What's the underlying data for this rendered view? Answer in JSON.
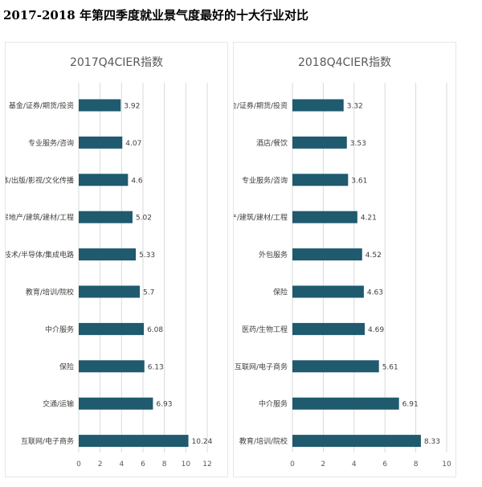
{
  "title": "2017-2018 年第四季度就业景气度最好的十大行业对比",
  "chart_data": [
    {
      "type": "bar",
      "orientation": "horizontal",
      "title": "2017Q4CIER指数",
      "categories": [
        "基金/证券/期货/投资",
        "专业服务/咨询",
        "媒体/出版/影视/文化传播",
        "房地产/建筑/建材/工程",
        "电子技术/半导体/集成电路",
        "教育/培训/院校",
        "中介服务",
        "保险",
        "交通/运输",
        "互联网/电子商务"
      ],
      "values": [
        3.92,
        4.07,
        4.6,
        5.02,
        5.33,
        5.7,
        6.08,
        6.13,
        6.93,
        10.24
      ],
      "value_labels": [
        "3.92",
        "4.07",
        "4.6",
        "5.02",
        "5.33",
        "5.7",
        "6.08",
        "6.13",
        "6.93",
        "10.24"
      ],
      "xlim": [
        0,
        12
      ],
      "ticks": [
        0,
        2,
        4,
        6,
        8,
        10,
        12
      ],
      "grid": true,
      "bar_color": "#1f5a6e"
    },
    {
      "type": "bar",
      "orientation": "horizontal",
      "title": "2018Q4CIER指数",
      "categories": [
        "基金/证券/期货/投资",
        "酒店/餐饮",
        "专业服务/咨询",
        "房地产/建筑/建材/工程",
        "外包服务",
        "保险",
        "医药/生物工程",
        "互联网/电子商务",
        "中介服务",
        "教育/培训/院校"
      ],
      "values": [
        3.32,
        3.53,
        3.61,
        4.21,
        4.52,
        4.63,
        4.69,
        5.61,
        6.91,
        8.33
      ],
      "value_labels": [
        "3.32",
        "3.53",
        "3.61",
        "4.21",
        "4.52",
        "4.63",
        "4.69",
        "5.61",
        "6.91",
        "8.33"
      ],
      "xlim": [
        0,
        10
      ],
      "ticks": [
        0,
        2,
        4,
        6,
        8,
        10
      ],
      "grid": true,
      "bar_color": "#1f5a6e"
    }
  ]
}
